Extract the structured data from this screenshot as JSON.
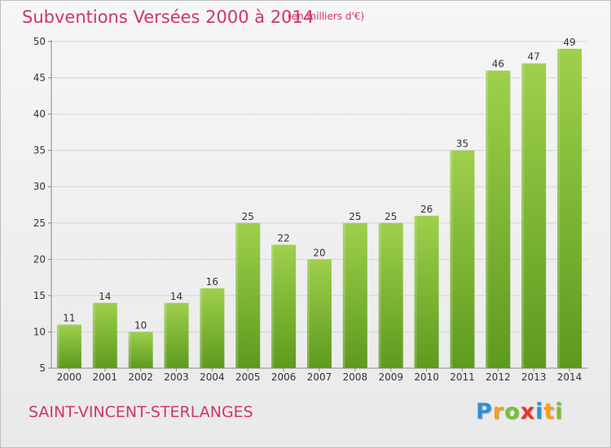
{
  "header": {
    "title": "Subventions Versées 2000 à 2014",
    "unit": "(en milliers d'€)"
  },
  "footer": {
    "commune": "SAINT-VINCENT-STERLANGES",
    "logo_letters": [
      "P",
      "r",
      "o",
      "x",
      "i",
      "t",
      "i"
    ],
    "logo_colors": [
      "#2f8fd8",
      "#ff9a1f",
      "#78c030",
      "#e8332a",
      "#2f8fd8",
      "#ff9a1f",
      "#78c030"
    ]
  },
  "chart_data": {
    "type": "bar",
    "title": "Subventions Versées 2000 à 2014",
    "subtitle": "(en milliers d'€)",
    "xlabel": "",
    "ylabel": "",
    "categories": [
      "2000",
      "2001",
      "2002",
      "2003",
      "2004",
      "2005",
      "2006",
      "2007",
      "2008",
      "2009",
      "2010",
      "2011",
      "2012",
      "2013",
      "2014"
    ],
    "values": [
      11,
      14,
      10,
      14,
      16,
      25,
      22,
      20,
      25,
      25,
      26,
      35,
      46,
      47,
      49
    ],
    "ylim": [
      5,
      50
    ],
    "yticks": [
      5,
      10,
      15,
      20,
      25,
      30,
      35,
      40,
      45,
      50
    ],
    "grid": true,
    "bar_color": "#7ab531",
    "bar_color_light": "#9ed04c",
    "bar_color_dark": "#5e9a1e"
  }
}
